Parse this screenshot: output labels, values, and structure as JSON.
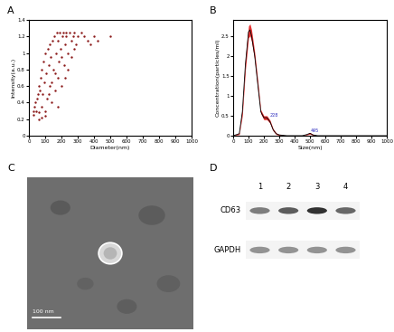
{
  "chart_data": [
    {
      "panel": "A",
      "type": "scatter",
      "xlabel": "Diameter(nm)",
      "ylabel": "Intensity(a.u.)",
      "color": "#8b1a1a",
      "marker": "o",
      "x": [
        25,
        30,
        35,
        40,
        45,
        50,
        55,
        60,
        60,
        65,
        70,
        75,
        80,
        85,
        90,
        95,
        100,
        100,
        105,
        110,
        115,
        120,
        125,
        130,
        135,
        140,
        145,
        150,
        155,
        160,
        165,
        170,
        175,
        180,
        185,
        190,
        195,
        200,
        205,
        210,
        215,
        220,
        225,
        230,
        240,
        250,
        260,
        270,
        280,
        290,
        300,
        320,
        340,
        360,
        380,
        400,
        420,
        500,
        60,
        80,
        100,
        120,
        140,
        160,
        180,
        200,
        220,
        240,
        260,
        280
      ],
      "values": [
        0.25,
        0.3,
        0.35,
        0.4,
        0.3,
        0.45,
        0.5,
        0.28,
        0.6,
        0.55,
        0.7,
        0.35,
        0.8,
        0.5,
        0.9,
        0.65,
        0.3,
        1.0,
        0.75,
        0.45,
        1.05,
        0.85,
        0.6,
        1.1,
        0.95,
        0.4,
        1.15,
        0.8,
        1.2,
        0.55,
        1.0,
        1.25,
        0.7,
        1.15,
        0.9,
        1.25,
        1.05,
        0.6,
        1.2,
        1.25,
        0.85,
        1.1,
        1.25,
        1.2,
        1.0,
        1.25,
        1.15,
        1.2,
        1.25,
        1.1,
        1.2,
        1.25,
        1.2,
        1.15,
        1.1,
        1.2,
        1.15,
        1.2,
        0.2,
        0.22,
        0.24,
        0.5,
        0.65,
        0.75,
        0.35,
        0.95,
        0.7,
        0.8,
        0.95,
        1.05
      ],
      "xlim": [
        0,
        1000
      ],
      "xticks": [
        0,
        100,
        200,
        300,
        400,
        500,
        600,
        700,
        800,
        900,
        1000
      ],
      "ylim": [
        0,
        1.4
      ],
      "yticks": [
        0,
        0.2,
        0.4,
        0.6,
        0.8,
        1,
        1.2,
        1.4
      ],
      "grid": false
    },
    {
      "panel": "B",
      "type": "line",
      "xlabel": "Size(nm)",
      "ylabel": "Concentration(particles/ml)",
      "color": "#000000",
      "error_color": "#e00000",
      "x": [
        0,
        40,
        60,
        80,
        100,
        110,
        120,
        140,
        160,
        180,
        200,
        220,
        240,
        260,
        280,
        300,
        350,
        400,
        450,
        480,
        500,
        520,
        550,
        600,
        700,
        800,
        1000
      ],
      "values": [
        0,
        0.05,
        0.6,
        1.8,
        2.6,
        2.65,
        2.5,
        2.0,
        1.3,
        0.6,
        0.45,
        0.45,
        0.35,
        0.15,
        0.05,
        0.02,
        0,
        0,
        0,
        0.03,
        0.06,
        0.02,
        0,
        0,
        0,
        0,
        0
      ],
      "error": [
        0,
        0.02,
        0.1,
        0.15,
        0.15,
        0.15,
        0.15,
        0.1,
        0.1,
        0.05,
        0.05,
        0.05,
        0.04,
        0.03,
        0.02,
        0.01,
        0,
        0,
        0,
        0.01,
        0.02,
        0.01,
        0,
        0,
        0,
        0,
        0
      ],
      "annotations": [
        {
          "text": "228",
          "x": 228,
          "y": 0.45
        },
        {
          "text": "495",
          "x": 495,
          "y": 0.06
        }
      ],
      "annotation_color": "#3030c0",
      "xlim": [
        0,
        1000
      ],
      "xticks": [
        0,
        100,
        200,
        300,
        400,
        500,
        600,
        700,
        800,
        900,
        1000
      ],
      "ylim": [
        0,
        2.9
      ],
      "yticks": [
        0,
        0.5,
        1,
        1.5,
        2,
        2.5
      ],
      "grid": false
    }
  ],
  "image": {
    "panel": "C",
    "scale_bar": "100 nm"
  },
  "blot": {
    "panel": "D",
    "lanes": [
      "1",
      "2",
      "3",
      "4"
    ],
    "rows": [
      {
        "label": "CD63",
        "band_intensity": [
          0.6,
          0.75,
          0.95,
          0.7
        ]
      },
      {
        "label": "GAPDH",
        "band_intensity": [
          0.5,
          0.5,
          0.5,
          0.5
        ]
      }
    ]
  }
}
